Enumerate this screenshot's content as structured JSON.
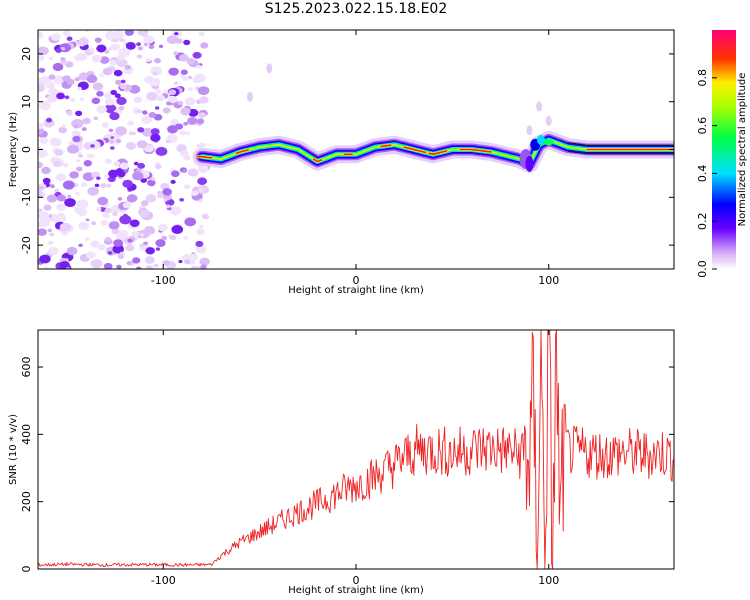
{
  "figure": {
    "title": "S125.2023.022.15.18.E02"
  },
  "chart_data": [
    {
      "type": "heatmap",
      "xlabel": "Height of straight line (km)",
      "ylabel": "Frequency (Hz)",
      "xlim": [
        -165,
        165
      ],
      "ylim": [
        -25,
        25
      ],
      "xticks": [
        -100,
        0,
        100
      ],
      "yticks": [
        -20,
        -10,
        0,
        10,
        20
      ],
      "colorbar": {
        "label": "Normalized spectral amplitude",
        "range": [
          0,
          1
        ],
        "ticks": [
          "0.0",
          "0.2",
          "0.4",
          "0.6",
          "0.8"
        ]
      },
      "ridge": {
        "x": [
          -80,
          -70,
          -60,
          -50,
          -40,
          -30,
          -20,
          -10,
          0,
          10,
          20,
          30,
          40,
          50,
          60,
          70,
          80,
          85,
          90,
          95,
          100,
          110,
          120,
          130,
          140,
          150,
          160,
          165
        ],
        "freq_hz": [
          -1.5,
          -2,
          -0.5,
          0.5,
          1,
          0,
          -2.5,
          -1,
          -1,
          0.5,
          1,
          0,
          -1,
          0,
          0,
          -0.5,
          -1.5,
          -2,
          -3,
          1,
          2,
          0.5,
          0,
          0,
          0,
          0,
          0,
          0
        ]
      },
      "noise_region_x": [
        -165,
        -80
      ]
    },
    {
      "type": "line",
      "xlabel": "Height of straight line (km)",
      "ylabel": "SNR (10 * v/v)",
      "xlim": [
        -165,
        165
      ],
      "ylim": [
        0,
        710
      ],
      "xticks": [
        -100,
        0,
        100
      ],
      "yticks": [
        0,
        200,
        400,
        600
      ],
      "color": "#ee2222",
      "x": [
        -165,
        -150,
        -130,
        -110,
        -90,
        -75,
        -70,
        -65,
        -60,
        -50,
        -40,
        -30,
        -20,
        -10,
        0,
        10,
        20,
        30,
        40,
        50,
        60,
        70,
        80,
        85,
        90,
        92,
        94,
        96,
        98,
        100,
        102,
        104,
        106,
        108,
        110,
        120,
        130,
        140,
        150,
        160,
        165
      ],
      "y": [
        12,
        14,
        12,
        13,
        12,
        13,
        40,
        60,
        80,
        110,
        140,
        170,
        195,
        225,
        250,
        275,
        310,
        350,
        355,
        345,
        355,
        360,
        350,
        340,
        330,
        500,
        80,
        640,
        60,
        690,
        50,
        660,
        100,
        420,
        350,
        345,
        340,
        345,
        340,
        345,
        330
      ]
    }
  ]
}
